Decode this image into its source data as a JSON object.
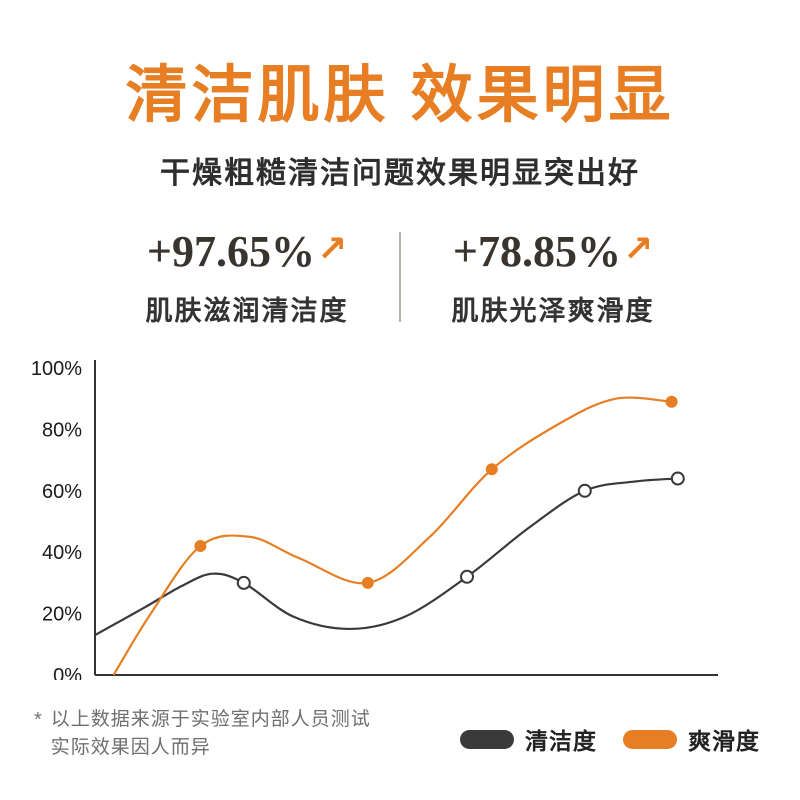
{
  "page": {
    "title": "清洁肌肤 效果明显",
    "subtitle": "干燥粗糙清洁问题效果明显突出好",
    "footnote_mark": "*",
    "footnote_line1": "以上数据来源于实验室内部人员测试",
    "footnote_line2": "实际效果因人而异"
  },
  "colors": {
    "accent_orange": "#E87E23",
    "dark": "#333333",
    "footnote_gray": "#6f6f6f"
  },
  "stats": [
    {
      "value": "+97.65%",
      "arrow_icon": "↗",
      "label": "肌肤滋润清洁度"
    },
    {
      "value": "+78.85%",
      "arrow_icon": "↗",
      "label": "肌肤光泽爽滑度"
    }
  ],
  "chart_data": {
    "type": "line",
    "title": "",
    "xlabel": "",
    "ylabel": "",
    "ylim": [
      0,
      100
    ],
    "yticks": [
      0,
      20,
      40,
      60,
      80,
      100
    ],
    "ytick_labels": [
      "0%",
      "20%",
      "40%",
      "60%",
      "80%",
      "100%"
    ],
    "grid": false,
    "legend_position": "bottom-right",
    "series": [
      {
        "name": "清洁度",
        "color": "#3a3a3a",
        "marker": "open-circle",
        "points": [
          [
            0,
            13
          ],
          [
            8,
            22
          ],
          [
            14,
            29
          ],
          [
            19,
            33
          ],
          [
            24,
            30
          ],
          [
            32,
            19
          ],
          [
            41,
            15
          ],
          [
            50,
            19
          ],
          [
            60,
            32
          ],
          [
            70,
            48
          ],
          [
            79,
            60
          ],
          [
            87,
            63
          ],
          [
            94,
            64
          ]
        ],
        "marker_points": [
          [
            24,
            30
          ],
          [
            60,
            32
          ],
          [
            79,
            60
          ],
          [
            94,
            64
          ]
        ]
      },
      {
        "name": "爽滑度",
        "color": "#E87E23",
        "marker": "filled-circle",
        "points": [
          [
            3,
            0
          ],
          [
            9,
            20
          ],
          [
            17,
            42
          ],
          [
            25,
            45
          ],
          [
            33,
            38
          ],
          [
            44,
            30
          ],
          [
            54,
            45
          ],
          [
            64,
            67
          ],
          [
            75,
            82
          ],
          [
            84,
            90
          ],
          [
            93,
            89
          ]
        ],
        "marker_points": [
          [
            17,
            42
          ],
          [
            44,
            30
          ],
          [
            64,
            67
          ],
          [
            93,
            89
          ]
        ]
      }
    ]
  }
}
